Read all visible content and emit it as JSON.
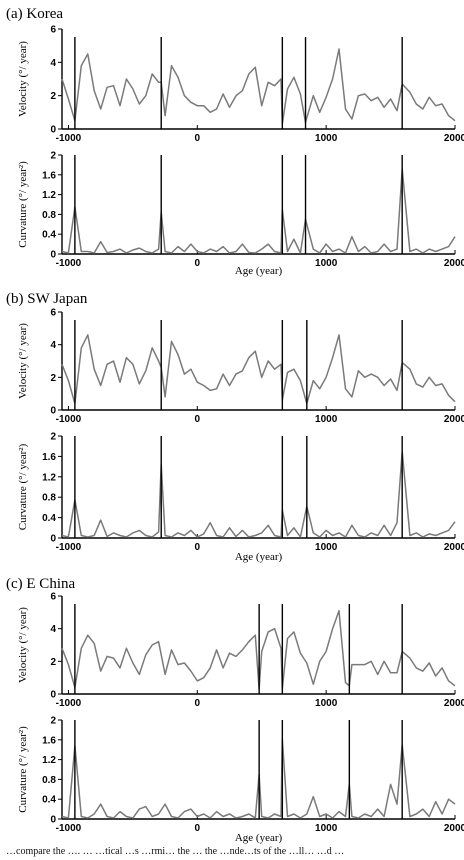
{
  "chart_data": [
    {
      "type": "line",
      "title": "(a) Korea",
      "xlabel": "Age (year)",
      "xlim": [
        -1050,
        2000
      ],
      "xticks": [
        "-1000",
        "0",
        "1000",
        "2000"
      ],
      "markers": [
        -950,
        -280,
        660,
        840,
        1590
      ],
      "velocity": {
        "ylabel": "Velocity (°/ year)",
        "ylim": [
          0,
          6
        ],
        "yticks": [
          "0",
          "2",
          "4",
          "6"
        ],
        "x": [
          -1050,
          -1000,
          -950,
          -900,
          -850,
          -800,
          -750,
          -700,
          -650,
          -600,
          -550,
          -500,
          -450,
          -400,
          -350,
          -300,
          -280,
          -250,
          -200,
          -150,
          -100,
          -50,
          0,
          50,
          100,
          150,
          200,
          250,
          300,
          350,
          400,
          450,
          500,
          550,
          600,
          650,
          660,
          700,
          750,
          800,
          840,
          900,
          950,
          1000,
          1050,
          1100,
          1150,
          1200,
          1250,
          1300,
          1350,
          1400,
          1450,
          1500,
          1550,
          1590,
          1650,
          1700,
          1750,
          1800,
          1850,
          1900,
          1950,
          2000
        ],
        "y": [
          3.0,
          1.8,
          0.5,
          3.8,
          4.5,
          2.3,
          1.2,
          2.5,
          2.6,
          1.4,
          3.0,
          2.4,
          1.5,
          2.0,
          3.3,
          2.8,
          2.8,
          0.8,
          3.8,
          3.1,
          2.0,
          1.6,
          1.4,
          1.4,
          1.0,
          1.2,
          2.1,
          1.3,
          2.0,
          2.3,
          3.3,
          3.7,
          1.4,
          2.8,
          2.6,
          3.0,
          0.3,
          2.4,
          3.1,
          2.1,
          0.4,
          2.0,
          1.0,
          1.9,
          3.0,
          4.8,
          1.2,
          0.6,
          2.0,
          2.1,
          1.7,
          1.9,
          1.3,
          1.8,
          1.1,
          2.7,
          2.2,
          1.5,
          1.2,
          1.9,
          1.4,
          1.5,
          0.8,
          0.5
        ]
      },
      "curvature": {
        "ylabel": "Curvature (°/ year²)",
        "ylim": [
          0,
          2
        ],
        "yticks": [
          "0",
          "0.4",
          "0.8",
          "1.2",
          "1.6",
          "2"
        ],
        "x": [
          -1050,
          -1000,
          -950,
          -900,
          -850,
          -800,
          -750,
          -700,
          -650,
          -600,
          -550,
          -500,
          -450,
          -400,
          -350,
          -300,
          -280,
          -250,
          -200,
          -150,
          -100,
          -50,
          0,
          50,
          100,
          150,
          200,
          250,
          300,
          350,
          400,
          450,
          500,
          550,
          600,
          650,
          660,
          700,
          750,
          800,
          840,
          900,
          950,
          1000,
          1050,
          1100,
          1150,
          1200,
          1250,
          1300,
          1350,
          1400,
          1450,
          1500,
          1550,
          1590,
          1650,
          1700,
          1750,
          1800,
          1850,
          1900,
          1950,
          2000
        ],
        "y": [
          0.05,
          0.02,
          0.95,
          0.05,
          0.05,
          0.02,
          0.25,
          0.03,
          0.05,
          0.1,
          0.02,
          0.08,
          0.12,
          0.05,
          0.02,
          0.1,
          0.85,
          0.05,
          0.02,
          0.15,
          0.05,
          0.2,
          0.05,
          0.02,
          0.1,
          0.05,
          0.15,
          0.02,
          0.05,
          0.2,
          0.03,
          0.02,
          0.1,
          0.2,
          0.05,
          0.02,
          0.9,
          0.05,
          0.3,
          0.02,
          0.7,
          0.1,
          0.02,
          0.2,
          0.05,
          0.1,
          0.02,
          0.35,
          0.05,
          0.15,
          0.02,
          0.05,
          0.2,
          0.05,
          0.1,
          1.72,
          0.05,
          0.1,
          0.02,
          0.1,
          0.05,
          0.1,
          0.15,
          0.35
        ]
      }
    },
    {
      "type": "line",
      "title": "(b) SW Japan",
      "xlabel": "Age (year)",
      "xlim": [
        -1050,
        2000
      ],
      "xticks": [
        "-1000",
        "0",
        "1000",
        "2000"
      ],
      "markers": [
        -950,
        -280,
        660,
        850,
        1590
      ],
      "velocity": {
        "ylabel": "Velocity (°/ year)",
        "ylim": [
          0,
          6
        ],
        "yticks": [
          "0",
          "2",
          "4",
          "6"
        ],
        "x": [
          -1050,
          -1000,
          -950,
          -900,
          -850,
          -800,
          -750,
          -700,
          -650,
          -600,
          -550,
          -500,
          -450,
          -400,
          -350,
          -300,
          -280,
          -250,
          -200,
          -150,
          -100,
          -50,
          0,
          50,
          100,
          150,
          200,
          250,
          300,
          350,
          400,
          450,
          500,
          550,
          600,
          650,
          660,
          700,
          750,
          800,
          850,
          900,
          950,
          1000,
          1050,
          1100,
          1150,
          1200,
          1250,
          1300,
          1350,
          1400,
          1450,
          1500,
          1550,
          1590,
          1650,
          1700,
          1750,
          1800,
          1850,
          1900,
          1950,
          2000
        ],
        "y": [
          2.8,
          1.8,
          0.4,
          3.8,
          4.6,
          2.5,
          1.5,
          2.8,
          3.0,
          1.7,
          3.2,
          2.8,
          1.6,
          2.4,
          3.8,
          3.0,
          2.6,
          0.8,
          4.2,
          3.4,
          2.2,
          2.5,
          1.7,
          1.5,
          1.2,
          1.3,
          2.2,
          1.5,
          2.2,
          2.4,
          3.2,
          3.6,
          2.0,
          3.0,
          2.5,
          2.8,
          0.6,
          2.3,
          2.5,
          1.8,
          0.4,
          1.8,
          1.3,
          2.0,
          3.2,
          4.6,
          1.3,
          0.8,
          2.4,
          2.0,
          2.2,
          2.0,
          1.5,
          1.9,
          1.2,
          2.9,
          2.5,
          1.6,
          1.4,
          2.0,
          1.5,
          1.6,
          0.9,
          0.5
        ]
      },
      "curvature": {
        "ylabel": "Curvature (°/ year²)",
        "ylim": [
          0,
          2
        ],
        "yticks": [
          "0",
          "0.4",
          "0.8",
          "1.2",
          "1.6",
          "2"
        ],
        "x": [
          -1050,
          -1000,
          -950,
          -900,
          -850,
          -800,
          -750,
          -700,
          -650,
          -600,
          -550,
          -500,
          -450,
          -400,
          -350,
          -300,
          -280,
          -250,
          -200,
          -150,
          -100,
          -50,
          0,
          50,
          100,
          150,
          200,
          250,
          300,
          350,
          400,
          450,
          500,
          550,
          600,
          650,
          660,
          700,
          750,
          800,
          850,
          900,
          950,
          1000,
          1050,
          1100,
          1150,
          1200,
          1250,
          1300,
          1350,
          1400,
          1450,
          1500,
          1550,
          1590,
          1650,
          1700,
          1750,
          1800,
          1850,
          1900,
          1950,
          2000
        ],
        "y": [
          0.05,
          0.02,
          0.75,
          0.05,
          0.02,
          0.05,
          0.35,
          0.03,
          0.1,
          0.05,
          0.02,
          0.1,
          0.15,
          0.05,
          0.02,
          0.12,
          1.45,
          0.05,
          0.02,
          0.1,
          0.05,
          0.15,
          0.02,
          0.08,
          0.3,
          0.05,
          0.02,
          0.2,
          0.03,
          0.15,
          0.02,
          0.05,
          0.1,
          0.25,
          0.05,
          0.02,
          0.55,
          0.05,
          0.2,
          0.02,
          0.62,
          0.1,
          0.02,
          0.15,
          0.05,
          0.1,
          0.02,
          0.25,
          0.05,
          0.02,
          0.1,
          0.05,
          0.25,
          0.05,
          0.3,
          1.7,
          0.05,
          0.1,
          0.02,
          0.08,
          0.05,
          0.1,
          0.15,
          0.32
        ]
      }
    },
    {
      "type": "line",
      "title": "(c) E China",
      "xlabel": "Age (year)",
      "xlim": [
        -1050,
        2000
      ],
      "xticks": [
        "-1000",
        "0",
        "1000",
        "2000"
      ],
      "markers": [
        -950,
        480,
        660,
        1180,
        1590
      ],
      "velocity": {
        "ylabel": "Velocity (°/ year)",
        "ylim": [
          0,
          6
        ],
        "yticks": [
          "0",
          "2",
          "4",
          "6"
        ],
        "x": [
          -1050,
          -1000,
          -950,
          -900,
          -850,
          -800,
          -750,
          -700,
          -650,
          -600,
          -550,
          -500,
          -450,
          -400,
          -350,
          -300,
          -250,
          -200,
          -150,
          -100,
          -50,
          0,
          50,
          100,
          150,
          200,
          250,
          300,
          350,
          400,
          450,
          480,
          500,
          550,
          600,
          650,
          660,
          700,
          750,
          800,
          850,
          900,
          950,
          1000,
          1050,
          1100,
          1150,
          1180,
          1200,
          1250,
          1300,
          1350,
          1400,
          1450,
          1500,
          1550,
          1590,
          1650,
          1700,
          1750,
          1800,
          1850,
          1900,
          1950,
          2000
        ],
        "y": [
          2.8,
          1.8,
          0.4,
          2.8,
          3.6,
          3.1,
          1.4,
          2.3,
          2.2,
          1.6,
          2.8,
          1.9,
          1.2,
          2.4,
          3.0,
          3.2,
          1.2,
          2.7,
          1.8,
          1.9,
          1.4,
          0.8,
          1.0,
          1.6,
          2.7,
          1.6,
          2.5,
          2.3,
          2.7,
          3.2,
          3.6,
          0.3,
          2.6,
          3.8,
          4.0,
          2.8,
          0.3,
          3.4,
          3.8,
          2.5,
          1.9,
          0.6,
          2.0,
          2.6,
          4.0,
          5.1,
          0.7,
          0.5,
          1.8,
          1.8,
          1.8,
          2.0,
          1.2,
          2.0,
          1.3,
          1.3,
          2.6,
          2.2,
          1.6,
          1.4,
          1.9,
          1.1,
          1.6,
          0.8,
          0.5
        ]
      },
      "curvature": {
        "ylabel": "Curvature (°/ year²)",
        "ylim": [
          0,
          2
        ],
        "yticks": [
          "0",
          "0.4",
          "0.8",
          "1.2",
          "1.6",
          "2"
        ],
        "x": [
          -1050,
          -1000,
          -950,
          -900,
          -850,
          -800,
          -750,
          -700,
          -650,
          -600,
          -550,
          -500,
          -450,
          -400,
          -350,
          -300,
          -250,
          -200,
          -150,
          -100,
          -50,
          0,
          50,
          100,
          150,
          200,
          250,
          300,
          350,
          400,
          450,
          480,
          500,
          550,
          600,
          650,
          660,
          700,
          750,
          800,
          850,
          900,
          950,
          1000,
          1050,
          1100,
          1150,
          1180,
          1200,
          1250,
          1300,
          1350,
          1400,
          1450,
          1500,
          1550,
          1590,
          1650,
          1700,
          1750,
          1800,
          1850,
          1900,
          1950,
          2000
        ],
        "y": [
          0.05,
          0.02,
          1.48,
          0.05,
          0.02,
          0.1,
          0.3,
          0.05,
          0.02,
          0.15,
          0.05,
          0.02,
          0.2,
          0.25,
          0.05,
          0.1,
          0.3,
          0.05,
          0.02,
          0.15,
          0.2,
          0.05,
          0.1,
          0.02,
          0.15,
          0.05,
          0.1,
          0.02,
          0.05,
          0.1,
          0.02,
          0.9,
          0.05,
          0.02,
          0.1,
          0.05,
          1.62,
          0.05,
          0.1,
          0.02,
          0.1,
          0.45,
          0.05,
          0.1,
          0.02,
          0.15,
          0.05,
          0.7,
          0.05,
          0.02,
          0.1,
          0.05,
          0.2,
          0.05,
          0.7,
          0.3,
          1.5,
          0.05,
          0.1,
          0.2,
          0.05,
          0.35,
          0.1,
          0.4,
          0.3
        ]
      }
    }
  ],
  "caption": "…compare the …. … …tical …s …rmi… the … the …nde…ts of the …ll… …d …"
}
